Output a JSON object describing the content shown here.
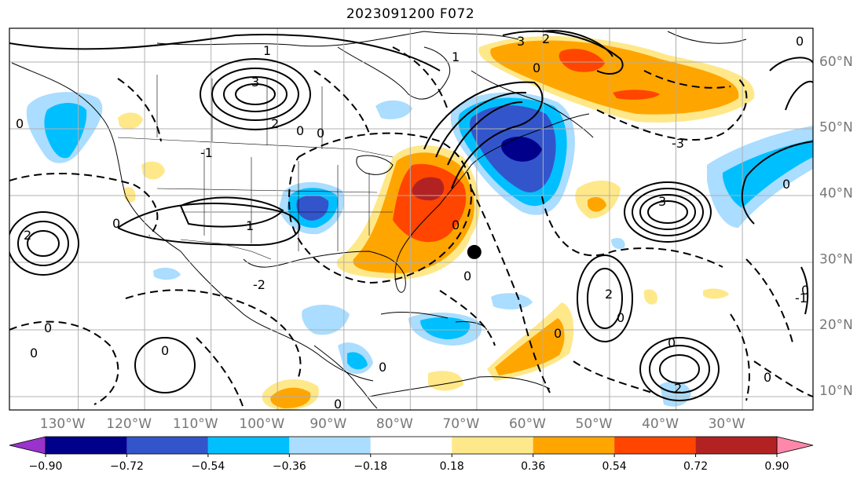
{
  "title": "2023091200 F072",
  "map": {
    "projection": "plate-carree",
    "lon_range": [
      -138,
      -17
    ],
    "lat_range": [
      7,
      65
    ],
    "grid": true,
    "lon_ticks": [
      -130,
      -120,
      -110,
      -100,
      -90,
      -80,
      -70,
      -60,
      -50,
      -40,
      -30
    ],
    "lat_ticks": [
      10,
      20,
      30,
      40,
      50,
      60
    ],
    "lon_tick_labels": [
      "130°W",
      "120°W",
      "110°W",
      "100°W",
      "90°W",
      "80°W",
      "70°W",
      "60°W",
      "50°W",
      "40°W",
      "30°W"
    ],
    "lat_tick_labels": [
      "10°N",
      "20°N",
      "30°N",
      "40°N",
      "50°N",
      "60°N"
    ],
    "marker": {
      "lon": -68,
      "lat": 31,
      "color": "#000000"
    }
  },
  "contour_labels": [
    "3",
    "2",
    "1",
    "0",
    "-1",
    "-2",
    "-3"
  ],
  "colorbar": {
    "extend": "both",
    "boundaries": [
      -0.9,
      -0.72,
      -0.54,
      -0.36,
      -0.18,
      0.18,
      0.36,
      0.54,
      0.72,
      0.9
    ],
    "tick_labels": [
      "−0.90",
      "−0.72",
      "−0.54",
      "−0.36",
      "−0.18",
      "0.18",
      "0.36",
      "0.54",
      "0.72",
      "0.90"
    ],
    "colors": [
      "#9933cc",
      "#00008b",
      "#3355cc",
      "#00bfff",
      "#aaddff",
      "#ffffff",
      "#ffe88a",
      "#ffa500",
      "#ff4500",
      "#b22222",
      "#ff88aa"
    ]
  }
}
